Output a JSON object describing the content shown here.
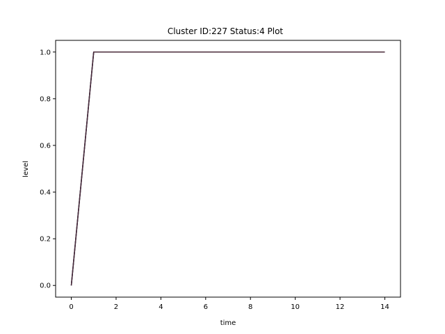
{
  "chart_data": {
    "type": "line",
    "title": "Cluster ID:227 Status:4 Plot",
    "xlabel": "time",
    "ylabel": "level",
    "xlim": [
      -0.7,
      14.7
    ],
    "ylim": [
      -0.05,
      1.05
    ],
    "xticks": [
      0,
      2,
      4,
      6,
      8,
      10,
      12,
      14
    ],
    "xtick_labels": [
      "0",
      "2",
      "4",
      "6",
      "8",
      "10",
      "12",
      "14"
    ],
    "yticks": [
      0.0,
      0.2,
      0.4,
      0.6,
      0.8,
      1.0
    ],
    "ytick_labels": [
      "0.0",
      "0.2",
      "0.4",
      "0.6",
      "0.8",
      "1.0"
    ],
    "grid": false,
    "legend": "none",
    "series": [
      {
        "color": "#3b1f3a",
        "x": [
          0,
          1,
          2,
          3,
          4,
          5,
          6,
          7,
          8,
          9,
          10,
          11,
          12,
          13,
          14
        ],
        "y": [
          0,
          1,
          1,
          1,
          1,
          1,
          1,
          1,
          1,
          1,
          1,
          1,
          1,
          1,
          1
        ]
      },
      {
        "color": "#1f3b4d",
        "x": [
          0,
          1,
          2,
          3,
          4,
          5,
          6,
          7,
          8,
          9,
          10,
          11,
          12,
          13,
          14
        ],
        "y": [
          0,
          1,
          1,
          1,
          1,
          1,
          1,
          1,
          1,
          1,
          1,
          1,
          1,
          1,
          1
        ]
      },
      {
        "color": "#4a2a3a",
        "x": [
          0,
          1,
          2,
          3,
          4,
          5,
          6,
          7,
          8,
          9,
          10,
          11,
          12,
          13,
          14
        ],
        "y": [
          0,
          1,
          1,
          1,
          1,
          1,
          1,
          1,
          1,
          1,
          1,
          1,
          1,
          1,
          1
        ]
      }
    ]
  }
}
